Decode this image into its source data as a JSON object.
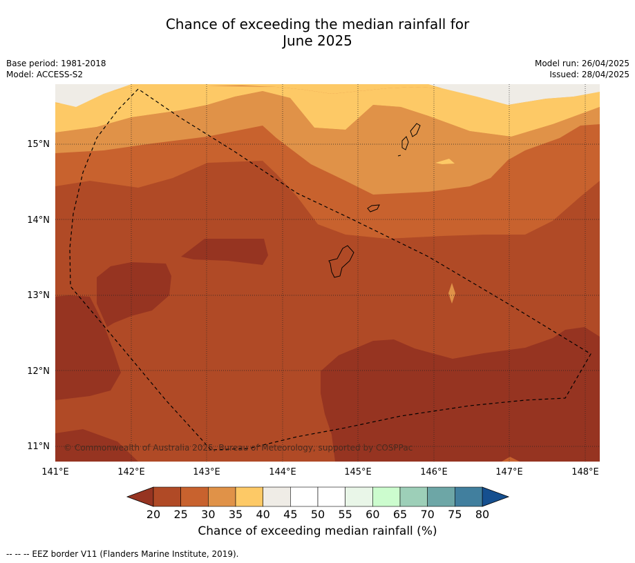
{
  "title_line1": "Chance of exceeding the median rainfall for",
  "title_line2": "June 2025",
  "meta_left": [
    "Base period: 1981-2018",
    "Model: ACCESS-S2"
  ],
  "meta_right": [
    "Model run: 26/04/2025",
    "Issued: 28/04/2025"
  ],
  "lon_ticks": [
    "141°E",
    "142°E",
    "143°E",
    "144°E",
    "145°E",
    "146°E",
    "147°E",
    "148°E"
  ],
  "lat_ticks": [
    "15°N",
    "14°N",
    "13°N",
    "12°N",
    "11°N"
  ],
  "copyright": "© Commonwealth of Australia 2025, Bureau of Meteorology, supported by COSPPac",
  "colorbar": {
    "labels": [
      "20",
      "25",
      "30",
      "35",
      "40",
      "45",
      "50",
      "55",
      "60",
      "65",
      "70",
      "75",
      "80"
    ],
    "colors": [
      "#b04a26",
      "#c8622e",
      "#e09248",
      "#fdc966",
      "#efece6",
      "#ffffff",
      "#ffffff",
      "#e9f6e8",
      "#ccfcce",
      "#9dcfb8",
      "#6da6a6",
      "#417f9e"
    ],
    "under_color": "#963421",
    "over_color": "#154f8f",
    "title": "Chance of exceeding median rainfall (%)"
  },
  "footnote": "--  --  -- EEZ border V11 (Flanders Marine Institute, 2019)."
}
